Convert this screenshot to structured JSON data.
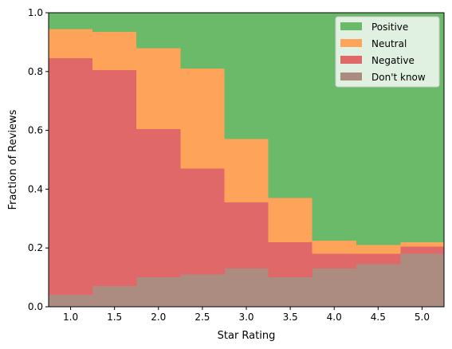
{
  "chart_data": {
    "type": "area",
    "stacked": true,
    "step": true,
    "normalized": true,
    "xlabel": "Star Rating",
    "ylabel": "Fraction of Reviews",
    "xlim": [
      0.75,
      5.25
    ],
    "ylim": [
      0,
      1
    ],
    "x": [
      1.0,
      1.5,
      2.0,
      2.5,
      3.0,
      3.5,
      4.0,
      4.5,
      5.0
    ],
    "xtick_labels": [
      "1.0",
      "1.5",
      "2.0",
      "2.5",
      "3.0",
      "3.5",
      "4.0",
      "4.5",
      "5.0"
    ],
    "ytick_values": [
      0.0,
      0.2,
      0.4,
      0.6,
      0.8,
      1.0
    ],
    "ytick_labels": [
      "0.0",
      "0.2",
      "0.4",
      "0.6",
      "0.8",
      "1.0"
    ],
    "grid": false,
    "legend_position": "top-right",
    "series": [
      {
        "name": "Don't know",
        "color": "#ac8b80",
        "values": [
          0.04,
          0.07,
          0.1,
          0.11,
          0.13,
          0.1,
          0.13,
          0.145,
          0.18
        ]
      },
      {
        "name": "Negative",
        "color": "#e06868",
        "values": [
          0.805,
          0.735,
          0.505,
          0.36,
          0.225,
          0.12,
          0.05,
          0.035,
          0.025
        ]
      },
      {
        "name": "Neutral",
        "color": "#fda45a",
        "values": [
          0.1,
          0.13,
          0.275,
          0.34,
          0.215,
          0.15,
          0.045,
          0.03,
          0.015
        ]
      },
      {
        "name": "Positive",
        "color": "#6aba6a",
        "values": [
          0.055,
          0.065,
          0.12,
          0.19,
          0.43,
          0.63,
          0.775,
          0.79,
          0.78
        ]
      }
    ],
    "legend_order": [
      "Positive",
      "Neutral",
      "Negative",
      "Don't know"
    ]
  }
}
